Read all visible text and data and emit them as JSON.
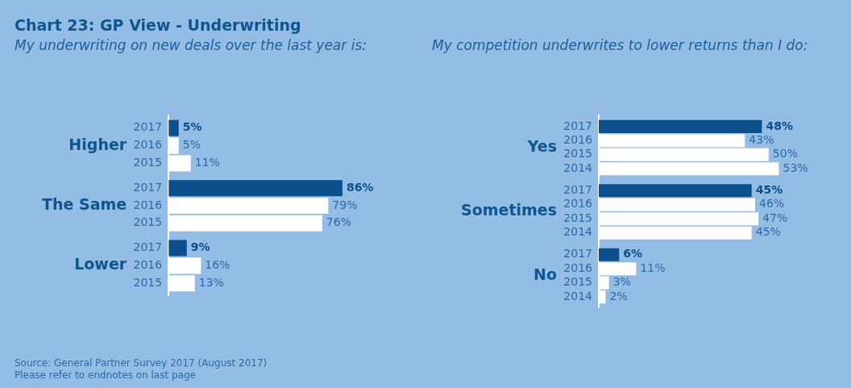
{
  "chart_data": [
    {
      "type": "bar",
      "orientation": "horizontal",
      "title": "Chart 23: GP View - Underwriting",
      "subtitle": "My underwriting on new deals over the last year is:",
      "categories": [
        "Higher",
        "The Same",
        "Lower"
      ],
      "series": [
        {
          "name": "2017",
          "color": "#0b4f8c",
          "values": [
            5,
            86,
            9
          ],
          "value_labels": [
            "5%",
            "86%",
            "9%"
          ]
        },
        {
          "name": "2016",
          "color": "#ffffff",
          "values": [
            5,
            79,
            16
          ],
          "value_labels": [
            "5%",
            "79%",
            "16%"
          ]
        },
        {
          "name": "2015",
          "color": "#ffffff",
          "values": [
            11,
            76,
            13
          ],
          "value_labels": [
            "11%",
            "76%",
            "13%"
          ]
        }
      ],
      "annotations": [
        "Source: General Partner Survey 2017 (August 2017)",
        "Please refer to endnotes on last page"
      ]
    },
    {
      "type": "bar",
      "orientation": "horizontal",
      "subtitle": "My competition underwrites to lower returns than I do:",
      "categories": [
        "Yes",
        "Sometimes",
        "No"
      ],
      "series": [
        {
          "name": "2017",
          "color": "#0b4f8c",
          "values": [
            48,
            45,
            6
          ],
          "value_labels": [
            "48%",
            "45%",
            "6%"
          ]
        },
        {
          "name": "2016",
          "color": "#ffffff",
          "values": [
            43,
            46,
            11
          ],
          "value_labels": [
            "43%",
            "46%",
            "11%"
          ]
        },
        {
          "name": "2015",
          "color": "#ffffff",
          "values": [
            50,
            47,
            3
          ],
          "value_labels": [
            "50%",
            "47%",
            "3%"
          ]
        },
        {
          "name": "2014",
          "color": "#ffffff",
          "values": [
            53,
            45,
            2
          ],
          "value_labels": [
            "53%",
            "45%",
            "2%"
          ]
        }
      ]
    }
  ]
}
